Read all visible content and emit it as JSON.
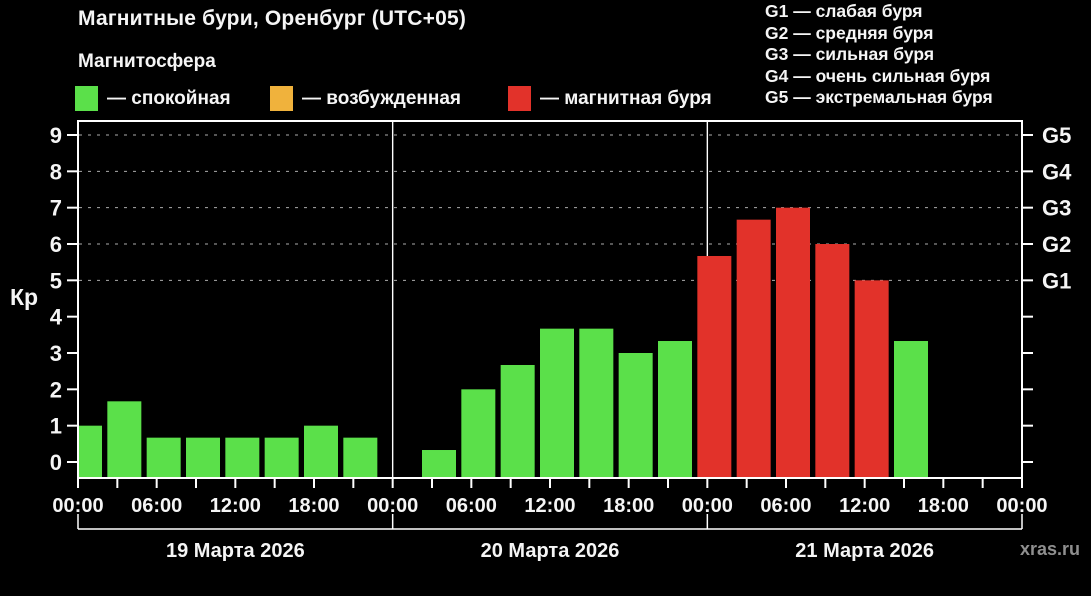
{
  "header": {
    "title": "Магнитные бури, Оренбург (UTC+05)",
    "subtitle": "Магнитосфера"
  },
  "status_colors": {
    "quiet": "#5be04a",
    "excited": "#f0b23c",
    "storm": "#e2322a"
  },
  "legend": {
    "items": [
      {
        "key": "quiet",
        "label": "— спокойная"
      },
      {
        "key": "excited",
        "label": "— возбужденная"
      },
      {
        "key": "storm",
        "label": "— магнитная буря"
      }
    ]
  },
  "storm_scale": {
    "lines": [
      {
        "text": "G1 — слабая буря"
      },
      {
        "text": "G2 — средняя буря"
      },
      {
        "text": "G3 — сильная буря"
      },
      {
        "text": "G4 — очень сильная буря"
      },
      {
        "text": "G5 — экстремальная буря"
      }
    ]
  },
  "watermark": "xras.ru",
  "chart_data": {
    "type": "bar",
    "ylabel": "Кр",
    "ylim": [
      0,
      9
    ],
    "yticks": [
      "0",
      "1",
      "2",
      "3",
      "4",
      "5",
      "6",
      "7",
      "8",
      "9"
    ],
    "right_axis": [
      {
        "kp": 5,
        "label": "G1"
      },
      {
        "kp": 6,
        "label": "G2"
      },
      {
        "kp": 7,
        "label": "G3"
      },
      {
        "kp": 8,
        "label": "G4"
      },
      {
        "kp": 9,
        "label": "G5"
      }
    ],
    "gridlines_at": [
      5,
      6,
      7,
      8,
      9
    ],
    "slot_hours": 3,
    "time_tick_labels": [
      "00:00",
      "06:00",
      "12:00",
      "18:00",
      "00:00",
      "06:00",
      "12:00",
      "18:00",
      "00:00",
      "06:00",
      "12:00",
      "18:00",
      "00:00"
    ],
    "days": [
      {
        "date": "19 Марта 2026",
        "times": [
          "00:00",
          "03:00",
          "06:00",
          "09:00",
          "12:00",
          "15:00",
          "18:00",
          "21:00"
        ],
        "values": [
          1.0,
          1.67,
          0.67,
          0.67,
          0.67,
          0.67,
          1.0,
          0.67
        ],
        "status": [
          "quiet",
          "quiet",
          "quiet",
          "quiet",
          "quiet",
          "quiet",
          "quiet",
          "quiet"
        ]
      },
      {
        "date": "20 Марта 2026",
        "times": [
          "00:00",
          "03:00",
          "06:00",
          "09:00",
          "12:00",
          "15:00",
          "18:00",
          "21:00"
        ],
        "values": [
          null,
          0.33,
          2.0,
          2.67,
          3.67,
          3.67,
          3.0,
          3.33
        ],
        "status": [
          null,
          "quiet",
          "quiet",
          "quiet",
          "quiet",
          "quiet",
          "quiet",
          "quiet"
        ]
      },
      {
        "date": "21 Марта 2026",
        "times": [
          "00:00",
          "03:00",
          "06:00",
          "09:00",
          "12:00",
          "15:00",
          "18:00",
          "21:00"
        ],
        "values": [
          5.67,
          6.67,
          7.0,
          6.0,
          5.0,
          3.33,
          null,
          null
        ],
        "status": [
          "storm",
          "storm",
          "storm",
          "storm",
          "storm",
          "quiet",
          null,
          null
        ]
      }
    ]
  }
}
